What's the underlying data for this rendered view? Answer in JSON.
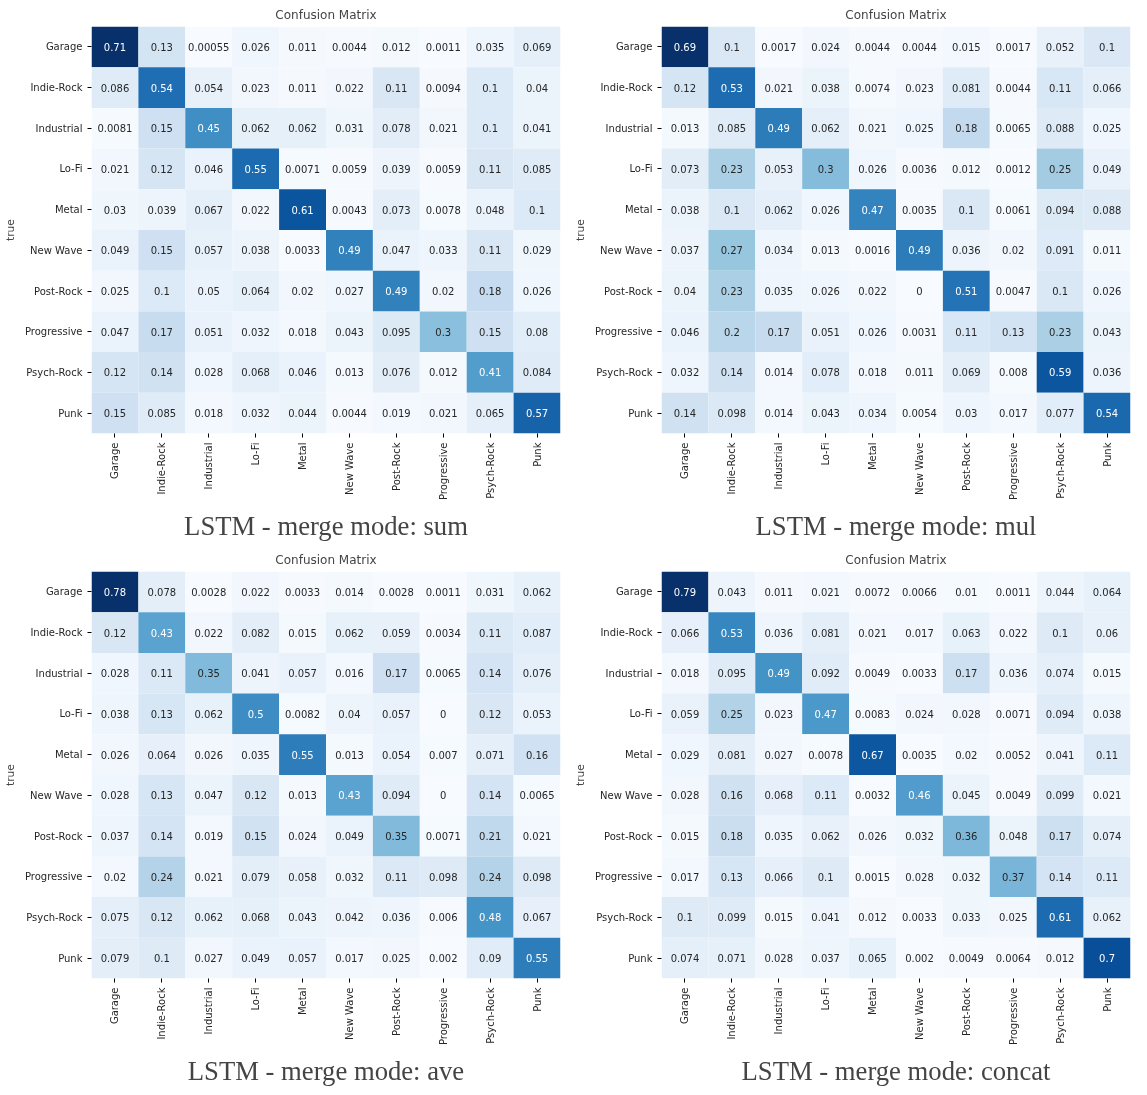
{
  "chart_data": [
    {
      "type": "heatmap",
      "title": "Confusion Matrix",
      "ylabel": "true",
      "data_labels": true,
      "annotations": [
        "LSTM - merge mode: sum"
      ],
      "categories": [
        "Garage",
        "Indie-Rock",
        "Industrial",
        "Lo-Fi",
        "Metal",
        "New Wave",
        "Post-Rock",
        "Progressive",
        "Psych-Rock",
        "Punk"
      ],
      "y_categories": [
        "Garage",
        "Indie-Rock",
        "Industrial",
        "Lo-Fi",
        "Metal",
        "New Wave",
        "Post-Rock",
        "Progressive",
        "Psych-Rock",
        "Punk"
      ],
      "cells": [
        [
          0.71,
          0.13,
          0.00055,
          0.026,
          0.011,
          0.0044,
          0.012,
          0.0011,
          0.035,
          0.069
        ],
        [
          0.086,
          0.54,
          0.054,
          0.023,
          0.011,
          0.022,
          0.11,
          0.0094,
          0.1,
          0.04
        ],
        [
          0.0081,
          0.15,
          0.45,
          0.062,
          0.062,
          0.031,
          0.078,
          0.021,
          0.1,
          0.041
        ],
        [
          0.021,
          0.12,
          0.046,
          0.55,
          0.0071,
          0.0059,
          0.039,
          0.0059,
          0.11,
          0.085
        ],
        [
          0.03,
          0.039,
          0.067,
          0.022,
          0.61,
          0.0043,
          0.073,
          0.0078,
          0.048,
          0.1
        ],
        [
          0.049,
          0.15,
          0.057,
          0.038,
          0.0033,
          0.49,
          0.047,
          0.033,
          0.11,
          0.029
        ],
        [
          0.025,
          0.1,
          0.05,
          0.064,
          0.02,
          0.027,
          0.49,
          0.02,
          0.18,
          0.026
        ],
        [
          0.047,
          0.17,
          0.051,
          0.032,
          0.018,
          0.043,
          0.095,
          0.3,
          0.15,
          0.08
        ],
        [
          0.12,
          0.14,
          0.028,
          0.068,
          0.046,
          0.013,
          0.076,
          0.012,
          0.41,
          0.084
        ],
        [
          0.15,
          0.085,
          0.018,
          0.032,
          0.044,
          0.0044,
          0.019,
          0.021,
          0.065,
          0.57
        ]
      ]
    },
    {
      "type": "heatmap",
      "title": "Confusion Matrix",
      "ylabel": "true",
      "data_labels": true,
      "annotations": [
        "LSTM - merge mode: mul"
      ],
      "categories": [
        "Garage",
        "Indie-Rock",
        "Industrial",
        "Lo-Fi",
        "Metal",
        "New Wave",
        "Post-Rock",
        "Progressive",
        "Psych-Rock",
        "Punk"
      ],
      "y_categories": [
        "Garage",
        "Indie-Rock",
        "Industrial",
        "Lo-Fi",
        "Metal",
        "New Wave",
        "Post-Rock",
        "Progressive",
        "Psych-Rock",
        "Punk"
      ],
      "cells": [
        [
          0.69,
          0.1,
          0.0017,
          0.024,
          0.0044,
          0.0044,
          0.015,
          0.0017,
          0.052,
          0.1
        ],
        [
          0.12,
          0.53,
          0.021,
          0.038,
          0.0074,
          0.023,
          0.081,
          0.0044,
          0.11,
          0.066
        ],
        [
          0.013,
          0.085,
          0.49,
          0.062,
          0.021,
          0.025,
          0.18,
          0.0065,
          0.088,
          0.025
        ],
        [
          0.073,
          0.23,
          0.053,
          0.3,
          0.026,
          0.0036,
          0.012,
          0.0012,
          0.25,
          0.049
        ],
        [
          0.038,
          0.1,
          0.062,
          0.026,
          0.47,
          0.0035,
          0.1,
          0.0061,
          0.094,
          0.088
        ],
        [
          0.037,
          0.27,
          0.034,
          0.013,
          0.0016,
          0.49,
          0.036,
          0.02,
          0.091,
          0.011
        ],
        [
          0.04,
          0.23,
          0.035,
          0.026,
          0.022,
          0,
          0.51,
          0.0047,
          0.1,
          0.026
        ],
        [
          0.046,
          0.2,
          0.17,
          0.051,
          0.026,
          0.0031,
          0.11,
          0.13,
          0.23,
          0.043
        ],
        [
          0.032,
          0.14,
          0.014,
          0.078,
          0.018,
          0.011,
          0.069,
          0.008,
          0.59,
          0.036
        ],
        [
          0.14,
          0.098,
          0.014,
          0.043,
          0.034,
          0.0054,
          0.03,
          0.017,
          0.077,
          0.54
        ]
      ]
    },
    {
      "type": "heatmap",
      "title": "Confusion Matrix",
      "ylabel": "true",
      "data_labels": true,
      "annotations": [
        "LSTM - merge mode: ave"
      ],
      "categories": [
        "Garage",
        "Indie-Rock",
        "Industrial",
        "Lo-Fi",
        "Metal",
        "New Wave",
        "Post-Rock",
        "Progressive",
        "Psych-Rock",
        "Punk"
      ],
      "y_categories": [
        "Garage",
        "Indie-Rock",
        "Industrial",
        "Lo-Fi",
        "Metal",
        "New Wave",
        "Post-Rock",
        "Progressive",
        "Psych-Rock",
        "Punk"
      ],
      "cells": [
        [
          0.78,
          0.078,
          0.0028,
          0.022,
          0.0033,
          0.014,
          0.0028,
          0.0011,
          0.031,
          0.062
        ],
        [
          0.12,
          0.43,
          0.022,
          0.082,
          0.015,
          0.062,
          0.059,
          0.0034,
          0.11,
          0.087
        ],
        [
          0.028,
          0.11,
          0.35,
          0.041,
          0.057,
          0.016,
          0.17,
          0.0065,
          0.14,
          0.076
        ],
        [
          0.038,
          0.13,
          0.062,
          0.5,
          0.0082,
          0.04,
          0.057,
          0,
          0.12,
          0.053
        ],
        [
          0.026,
          0.064,
          0.026,
          0.035,
          0.55,
          0.013,
          0.054,
          0.007,
          0.071,
          0.16
        ],
        [
          0.028,
          0.13,
          0.047,
          0.12,
          0.013,
          0.43,
          0.094,
          0,
          0.14,
          0.0065
        ],
        [
          0.037,
          0.14,
          0.019,
          0.15,
          0.024,
          0.049,
          0.35,
          0.0071,
          0.21,
          0.021
        ],
        [
          0.02,
          0.24,
          0.021,
          0.079,
          0.058,
          0.032,
          0.11,
          0.098,
          0.24,
          0.098
        ],
        [
          0.075,
          0.12,
          0.062,
          0.068,
          0.043,
          0.042,
          0.036,
          0.006,
          0.48,
          0.067
        ],
        [
          0.079,
          0.1,
          0.027,
          0.049,
          0.057,
          0.017,
          0.025,
          0.002,
          0.09,
          0.55
        ]
      ]
    },
    {
      "type": "heatmap",
      "title": "Confusion Matrix",
      "ylabel": "true",
      "data_labels": true,
      "annotations": [
        "LSTM - merge mode: concat"
      ],
      "categories": [
        "Garage",
        "Indie-Rock",
        "Industrial",
        "Lo-Fi",
        "Metal",
        "New Wave",
        "Post-Rock",
        "Progressive",
        "Psych-Rock",
        "Punk"
      ],
      "y_categories": [
        "Garage",
        "Indie-Rock",
        "Industrial",
        "Lo-Fi",
        "Metal",
        "New Wave",
        "Post-Rock",
        "Progressive",
        "Psych-Rock",
        "Punk"
      ],
      "cells": [
        [
          0.79,
          0.043,
          0.011,
          0.021,
          0.0072,
          0.0066,
          0.01,
          0.0011,
          0.044,
          0.064
        ],
        [
          0.066,
          0.53,
          0.036,
          0.081,
          0.021,
          0.017,
          0.063,
          0.022,
          0.1,
          0.06
        ],
        [
          0.018,
          0.095,
          0.49,
          0.092,
          0.0049,
          0.0033,
          0.17,
          0.036,
          0.074,
          0.015
        ],
        [
          0.059,
          0.25,
          0.023,
          0.47,
          0.0083,
          0.024,
          0.028,
          0.0071,
          0.094,
          0.038
        ],
        [
          0.029,
          0.081,
          0.027,
          0.0078,
          0.67,
          0.0035,
          0.02,
          0.0052,
          0.041,
          0.11
        ],
        [
          0.028,
          0.16,
          0.068,
          0.11,
          0.0032,
          0.46,
          0.045,
          0.0049,
          0.099,
          0.021
        ],
        [
          0.015,
          0.18,
          0.035,
          0.062,
          0.026,
          0.032,
          0.36,
          0.048,
          0.17,
          0.074
        ],
        [
          0.017,
          0.13,
          0.066,
          0.1,
          0.0015,
          0.028,
          0.032,
          0.37,
          0.14,
          0.11
        ],
        [
          0.1,
          0.099,
          0.015,
          0.041,
          0.012,
          0.0033,
          0.033,
          0.025,
          0.61,
          0.062
        ],
        [
          0.074,
          0.071,
          0.028,
          0.037,
          0.065,
          0.002,
          0.0049,
          0.0064,
          0.012,
          0.7
        ]
      ]
    }
  ]
}
